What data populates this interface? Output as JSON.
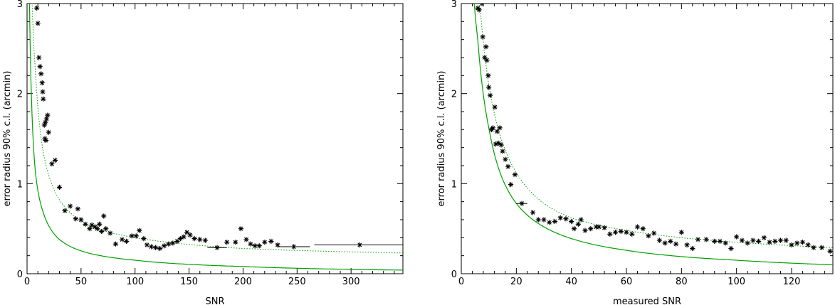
{
  "chart_data": [
    {
      "type": "scatter",
      "xlabel": "SNR",
      "ylabel": "error radius 90% c.l. (arcmin)",
      "xlim": [
        0,
        348
      ],
      "ylim": [
        0,
        3
      ],
      "xticks": [
        0,
        50,
        100,
        150,
        200,
        250,
        300
      ],
      "yticks": [
        0,
        1,
        2,
        3
      ],
      "grid": false,
      "colors": {
        "points": "#000000",
        "curves": "#00a000"
      },
      "series": [
        {
          "kind": "points",
          "marker": "asterisk",
          "points": [
            [
              9,
              2.95
            ],
            [
              10,
              2.78
            ],
            [
              11,
              2.4
            ],
            [
              12,
              2.3
            ],
            [
              13,
              2.22
            ],
            [
              14,
              2.12
            ],
            [
              14.5,
              2.02
            ],
            [
              15,
              1.94
            ],
            [
              16,
              1.65
            ],
            [
              17,
              1.68
            ],
            [
              18,
              1.72
            ],
            [
              19,
              1.76
            ],
            [
              16.5,
              1.5
            ],
            [
              17.5,
              1.48
            ],
            [
              20,
              1.57
            ],
            [
              23,
              1.22
            ],
            [
              26,
              1.26
            ],
            [
              30,
              0.96
            ],
            [
              35,
              0.7
            ],
            [
              40,
              0.75
            ],
            [
              45,
              0.61
            ],
            [
              47,
              0.72
            ],
            [
              50,
              0.6
            ],
            [
              54,
              0.55
            ],
            [
              58,
              0.5
            ],
            [
              60,
              0.54
            ],
            [
              63,
              0.52
            ],
            [
              65,
              0.5
            ],
            [
              67,
              0.55
            ],
            [
              69,
              0.47
            ],
            [
              71,
              0.64
            ],
            [
              73,
              0.5
            ],
            [
              77,
              0.45
            ],
            [
              82,
              0.33
            ],
            [
              88,
              0.38
            ],
            [
              92,
              0.36
            ],
            [
              97,
              0.42
            ],
            [
              101,
              0.42
            ],
            [
              104,
              0.48
            ],
            [
              108,
              0.39
            ],
            [
              111,
              0.32
            ],
            [
              115,
              0.3
            ],
            [
              119,
              0.29
            ],
            [
              123,
              0.28
            ],
            [
              127,
              0.31
            ],
            [
              131,
              0.33
            ],
            [
              135,
              0.34
            ],
            [
              139,
              0.36
            ],
            [
              142,
              0.39
            ],
            [
              145,
              0.41
            ],
            [
              148,
              0.46
            ],
            [
              151,
              0.43
            ],
            [
              155,
              0.39
            ],
            [
              160,
              0.38
            ],
            [
              165,
              0.37
            ],
            [
              176,
              0.29
            ],
            [
              185,
              0.35
            ],
            [
              193,
              0.35
            ],
            [
              198,
              0.5
            ],
            [
              203,
              0.38
            ],
            [
              207,
              0.33
            ],
            [
              211,
              0.31
            ],
            [
              215,
              0.31
            ],
            [
              220,
              0.35
            ],
            [
              226,
              0.36
            ],
            [
              232,
              0.32
            ],
            [
              247,
              0.3
            ],
            [
              308,
              0.32
            ]
          ],
          "xerr": [
            [
              176,
              167,
              185
            ],
            [
              247,
              232,
              262
            ],
            [
              308,
              266,
              348
            ]
          ]
        },
        {
          "kind": "line",
          "style": "solid"
        },
        {
          "kind": "line",
          "style": "dotted"
        }
      ]
    },
    {
      "type": "scatter",
      "xlabel": "measured SNR",
      "ylabel": "error radius 90% c.l. (arcmin)",
      "xlim": [
        0,
        135
      ],
      "ylim": [
        0,
        3
      ],
      "xticks": [
        0,
        20,
        40,
        60,
        80,
        100,
        120
      ],
      "yticks": [
        0,
        1,
        2,
        3
      ],
      "grid": false,
      "colors": {
        "points": "#000000",
        "curves": "#00a000"
      },
      "series": [
        {
          "kind": "points",
          "marker": "asterisk",
          "points": [
            [
              6,
              2.95
            ],
            [
              6.5,
              2.93
            ],
            [
              7.5,
              3.0
            ],
            [
              7.8,
              2.63
            ],
            [
              8.5,
              2.4
            ],
            [
              9,
              2.52
            ],
            [
              9.3,
              2.37
            ],
            [
              9.8,
              2.2
            ],
            [
              10,
              2.07
            ],
            [
              10.5,
              1.98
            ],
            [
              11,
              1.6
            ],
            [
              11.5,
              1.62
            ],
            [
              12.2,
              1.85
            ],
            [
              12.5,
              1.44
            ],
            [
              13,
              1.58
            ],
            [
              13.5,
              1.45
            ],
            [
              14,
              1.62
            ],
            [
              14.5,
              1.43
            ],
            [
              15,
              1.36
            ],
            [
              16,
              1.27
            ],
            [
              17,
              1.19
            ],
            [
              18,
              0.99
            ],
            [
              19.5,
              1.1
            ],
            [
              22,
              0.78
            ],
            [
              26,
              0.68
            ],
            [
              28,
              0.6
            ],
            [
              30,
              0.6
            ],
            [
              32,
              0.57
            ],
            [
              34,
              0.58
            ],
            [
              36,
              0.62
            ],
            [
              38,
              0.61
            ],
            [
              40,
              0.58
            ],
            [
              41,
              0.5
            ],
            [
              42.5,
              0.55
            ],
            [
              43.5,
              0.6
            ],
            [
              45,
              0.48
            ],
            [
              47,
              0.5
            ],
            [
              49,
              0.52
            ],
            [
              50,
              0.52
            ],
            [
              52,
              0.51
            ],
            [
              54,
              0.44
            ],
            [
              56,
              0.46
            ],
            [
              58,
              0.47
            ],
            [
              60,
              0.46
            ],
            [
              62,
              0.44
            ],
            [
              64,
              0.52
            ],
            [
              66,
              0.5
            ],
            [
              68,
              0.42
            ],
            [
              70,
              0.45
            ],
            [
              72,
              0.37
            ],
            [
              74,
              0.34
            ],
            [
              76,
              0.36
            ],
            [
              78,
              0.33
            ],
            [
              80,
              0.46
            ],
            [
              82,
              0.32
            ],
            [
              84,
              0.28
            ],
            [
              86,
              0.38
            ],
            [
              89,
              0.38
            ],
            [
              92,
              0.36
            ],
            [
              94,
              0.36
            ],
            [
              96,
              0.34
            ],
            [
              98,
              0.28
            ],
            [
              100,
              0.41
            ],
            [
              102,
              0.37
            ],
            [
              104,
              0.34
            ],
            [
              106,
              0.37
            ],
            [
              108,
              0.36
            ],
            [
              110,
              0.4
            ],
            [
              112,
              0.35
            ],
            [
              114,
              0.36
            ],
            [
              116,
              0.37
            ],
            [
              118,
              0.37
            ],
            [
              120,
              0.32
            ],
            [
              122,
              0.34
            ],
            [
              124,
              0.35
            ],
            [
              126,
              0.32
            ],
            [
              128,
              0.29
            ],
            [
              131,
              0.29
            ],
            [
              134,
              0.25
            ]
          ],
          "xerr": [
            [
              22,
              20,
              24
            ]
          ]
        },
        {
          "kind": "line",
          "style": "solid"
        },
        {
          "kind": "line",
          "style": "dotted"
        }
      ]
    }
  ]
}
